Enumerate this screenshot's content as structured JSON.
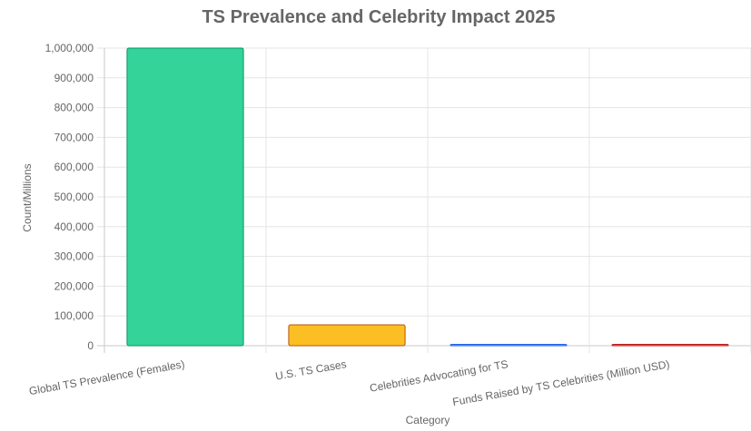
{
  "chart_data": {
    "type": "bar",
    "title": "TS Prevalence and Celebrity Impact 2025",
    "xlabel": "Category",
    "ylabel": "Count/Millions",
    "ylim": [
      0,
      1000000
    ],
    "y_ticks": [
      0,
      100000,
      200000,
      300000,
      400000,
      500000,
      600000,
      700000,
      800000,
      900000,
      1000000
    ],
    "y_tick_labels": [
      "0",
      "100,000",
      "200,000",
      "300,000",
      "400,000",
      "500,000",
      "600,000",
      "700,000",
      "800,000",
      "900,000",
      "1,000,000"
    ],
    "categories": [
      "Global TS Prevalence (Females)",
      "U.S. TS Cases",
      "Celebrities Advocating for TS",
      "Funds Raised by TS Celebrities (Million USD)"
    ],
    "values": [
      1000000,
      70000,
      50,
      2.5
    ],
    "colors": [
      "#34d399",
      "#fbbf24",
      "#60a5fa",
      "#f87171"
    ],
    "border_colors": [
      "#059669",
      "#b45309",
      "#2563eb",
      "#b91c1c"
    ],
    "grid": true,
    "legend": "none"
  }
}
